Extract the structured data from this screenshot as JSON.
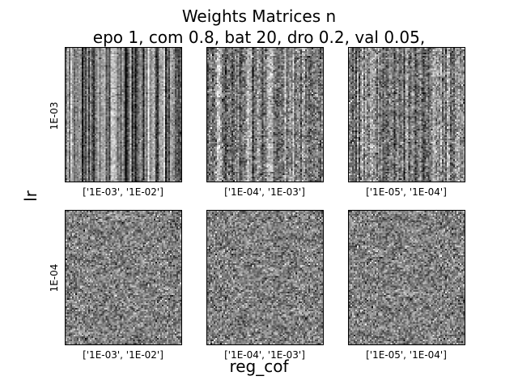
{
  "chart_data": {
    "type": "heatmap",
    "title_line1": "Weights Matrices n",
    "title_line2": "epo 1, com 0.8, bat 20, dro 0.2, val 0.05,",
    "ylabel": "lr",
    "xlabel": "reg_cof",
    "row_labels": [
      "1E-03",
      "1E-04"
    ],
    "col_labels": [
      "['1E-03', '1E-02']",
      "['1E-04', '1E-03']",
      "['1E-05', '1E-04']"
    ],
    "colormap": "gray",
    "panels": [
      {
        "row": 0,
        "col": 0,
        "pattern": "vertical-stripes-strong"
      },
      {
        "row": 0,
        "col": 1,
        "pattern": "vertical-stripes-medium"
      },
      {
        "row": 0,
        "col": 2,
        "pattern": "vertical-stripes-medium"
      },
      {
        "row": 1,
        "col": 0,
        "pattern": "noise"
      },
      {
        "row": 1,
        "col": 1,
        "pattern": "noise"
      },
      {
        "row": 1,
        "col": 2,
        "pattern": "noise"
      }
    ]
  }
}
